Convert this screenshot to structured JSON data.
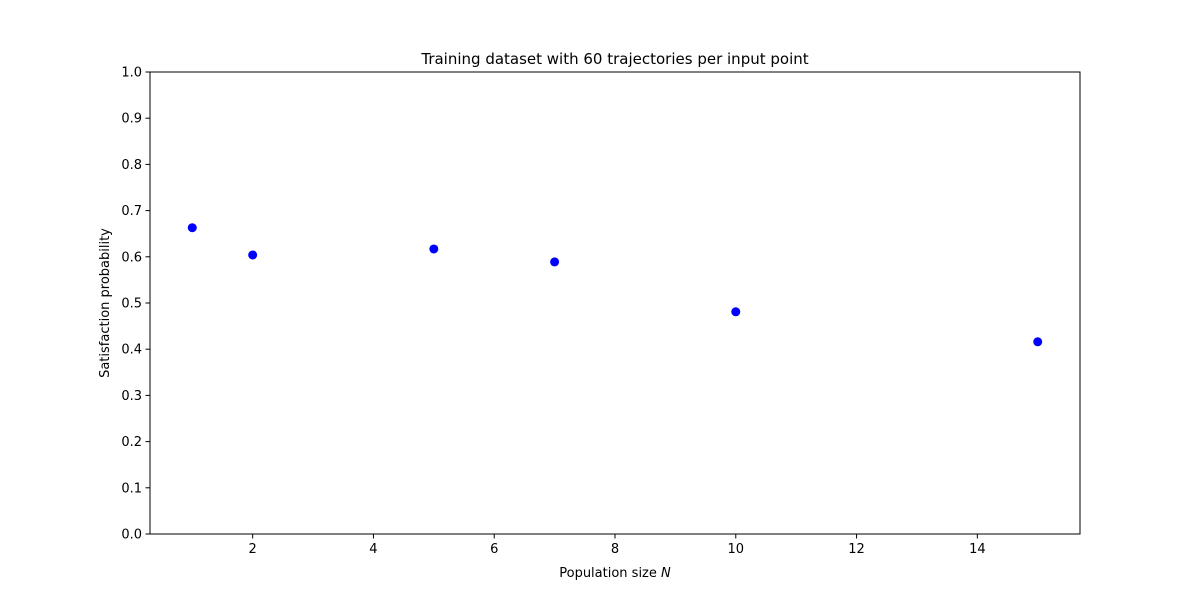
{
  "chart_data": {
    "type": "scatter",
    "title": "Training dataset with 60 trajectories per input point",
    "xlabel": "Population size",
    "xlabel_var": "N",
    "ylabel": "Satisfaction probability",
    "xlim": [
      0.3,
      15.7
    ],
    "ylim": [
      0.0,
      1.0
    ],
    "x_ticks": [
      2,
      4,
      6,
      8,
      10,
      12,
      14
    ],
    "x_tick_labels": [
      "2",
      "4",
      "6",
      "8",
      "10",
      "12",
      "14"
    ],
    "y_ticks": [
      0.0,
      0.1,
      0.2,
      0.3,
      0.4,
      0.5,
      0.6,
      0.7,
      0.8,
      0.9,
      1.0
    ],
    "y_tick_labels": [
      "0.0",
      "0.1",
      "0.2",
      "0.3",
      "0.4",
      "0.5",
      "0.6",
      "0.7",
      "0.8",
      "0.9",
      "1.0"
    ],
    "grid": false,
    "legend": "none",
    "series": [
      {
        "color": "#0000ff",
        "marker": "circle",
        "points": [
          {
            "x": 1,
            "y": 0.663
          },
          {
            "x": 2,
            "y": 0.604
          },
          {
            "x": 5,
            "y": 0.617
          },
          {
            "x": 7,
            "y": 0.589
          },
          {
            "x": 10,
            "y": 0.481
          },
          {
            "x": 15,
            "y": 0.416
          }
        ]
      }
    ]
  }
}
